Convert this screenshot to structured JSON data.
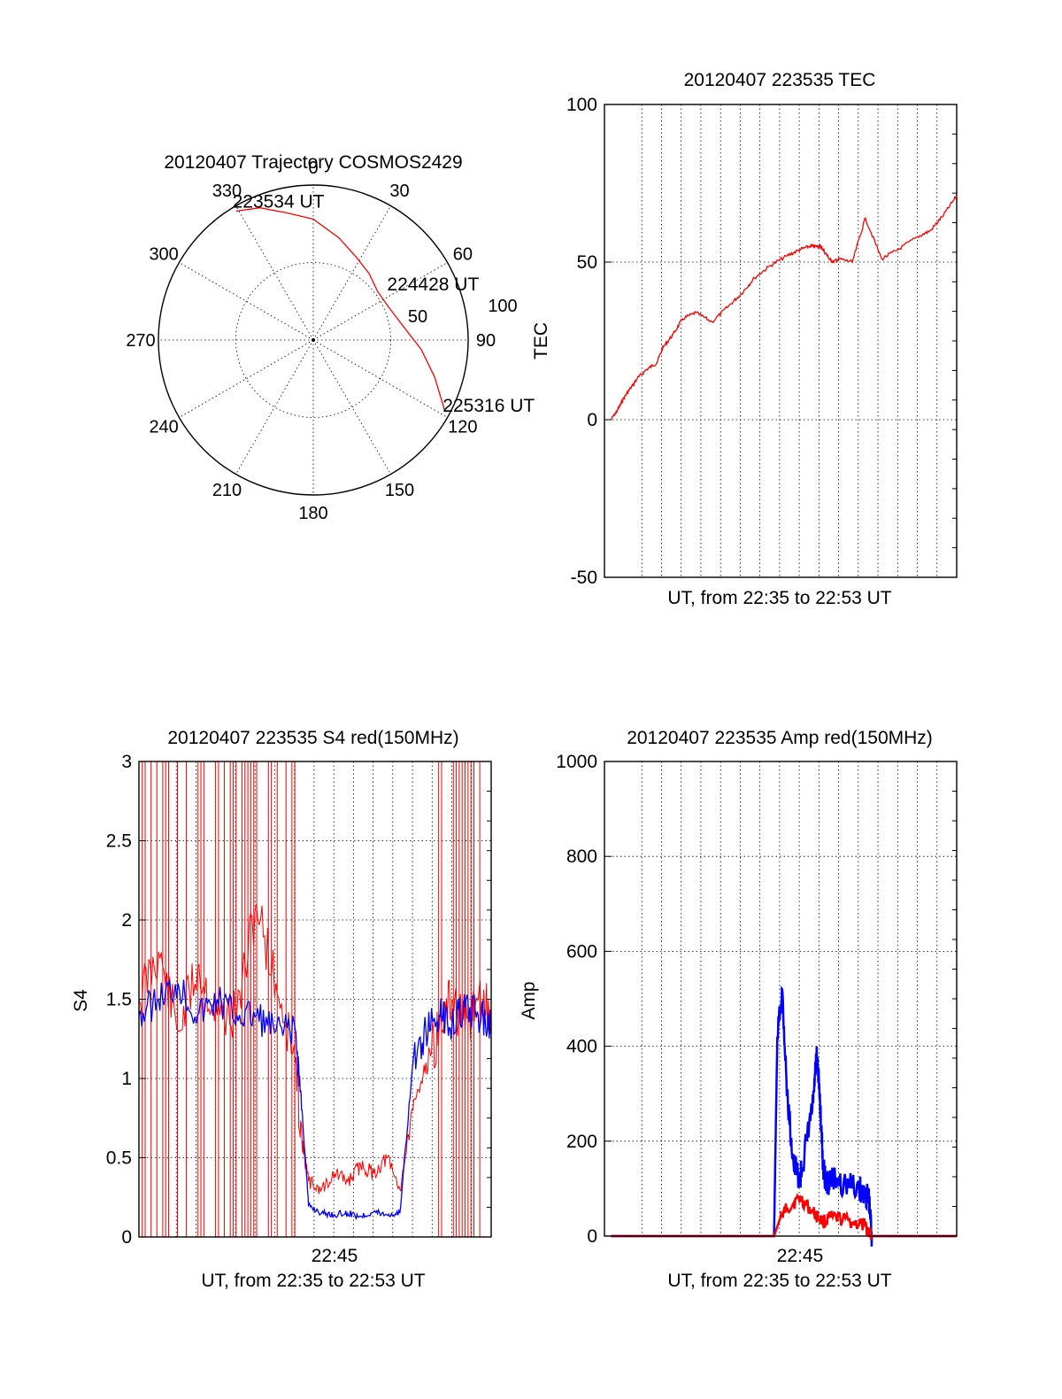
{
  "colors": {
    "red": "#ff0000",
    "blue": "#0000ff",
    "axis": "#000000",
    "background": "#ffffff"
  },
  "chart_data": [
    {
      "type": "scatter",
      "subtype": "polar",
      "title": "20120407 Trajectory COSMOS2429",
      "angle_labels": [
        "0",
        "30",
        "60",
        "90",
        "120",
        "150",
        "180",
        "210",
        "240",
        "270",
        "300",
        "330"
      ],
      "angle_direction": "clockwise from top",
      "radial_labels": [
        "50",
        "100"
      ],
      "rlim": [
        0,
        100
      ],
      "grid": true,
      "series": [
        {
          "color": "#ff0000",
          "points": [
            {
              "az": 329,
              "r": 97
            },
            {
              "az": 338,
              "r": 92
            },
            {
              "az": 348,
              "r": 84
            },
            {
              "az": 0,
              "r": 78
            },
            {
              "az": 14,
              "r": 68
            },
            {
              "az": 28,
              "r": 60
            },
            {
              "az": 40,
              "r": 56
            },
            {
              "az": 53,
              "r": 52
            },
            {
              "az": 66,
              "r": 53
            },
            {
              "az": 80,
              "r": 58
            },
            {
              "az": 95,
              "r": 70
            },
            {
              "az": 107,
              "r": 82
            },
            {
              "az": 118,
              "r": 96
            }
          ]
        }
      ],
      "annotations": [
        {
          "text": "223534 UT",
          "az": 329,
          "r": 97
        },
        {
          "text": "224428 UT",
          "az": 55,
          "r": 54
        },
        {
          "text": "225316 UT",
          "az": 118,
          "r": 96
        }
      ]
    },
    {
      "type": "line",
      "title": "20120407 223535 TEC",
      "xlabel": "UT, from 22:35 to 22:53 UT",
      "ylabel": "TEC",
      "xlim": [
        0,
        1080
      ],
      "ylim": [
        -50,
        100
      ],
      "yticks": [
        "-50",
        "0",
        "50",
        "100"
      ],
      "grid": true,
      "series": [
        {
          "color": "#ff0000",
          "x": [
            20,
            40,
            60,
            80,
            100,
            130,
            160,
            180,
            210,
            240,
            280,
            330,
            380,
            420,
            460,
            510,
            560,
            600,
            630,
            650,
            662,
            670,
            690,
            700,
            720,
            760,
            800,
            850,
            900,
            960,
            1000,
            1040,
            1080
          ],
          "y": [
            0,
            3,
            7,
            10,
            13,
            16,
            18,
            23,
            27,
            32,
            34,
            31,
            36,
            40,
            45,
            49,
            52,
            54,
            55,
            55,
            55,
            54,
            51,
            50,
            51,
            50,
            64,
            51,
            54,
            58,
            60,
            65,
            71
          ]
        }
      ]
    },
    {
      "type": "line",
      "title": "20120407 223535 S4 red(150MHz)",
      "xlabel": "UT, from 22:35 to 22:53 UT",
      "ylabel": "S4",
      "xtick_labels": [
        "22:45"
      ],
      "xlim": [
        0,
        1080
      ],
      "ylim": [
        0,
        3
      ],
      "yticks": [
        "0",
        "0.5",
        "1",
        "1.5",
        "2",
        "2.5",
        "3"
      ],
      "grid": true,
      "series": [
        {
          "color": "#ff0000",
          "x": [
            0,
            60,
            120,
            180,
            240,
            300,
            360,
            420,
            480,
            500,
            520,
            560,
            600,
            640,
            680,
            720,
            760,
            800,
            840,
            880,
            920,
            960,
            1000,
            1040,
            1080
          ],
          "y": [
            1.5,
            1.8,
            1.3,
            1.7,
            1.4,
            1.4,
            2.1,
            1.6,
            1.1,
            0.6,
            0.35,
            0.3,
            0.4,
            0.35,
            0.45,
            0.4,
            0.5,
            0.3,
            0.8,
            1.1,
            1.3,
            1.5,
            1.3,
            1.5,
            1.4
          ]
        },
        {
          "color": "#0000ff",
          "x": [
            0,
            60,
            120,
            180,
            240,
            300,
            360,
            420,
            480,
            500,
            520,
            560,
            600,
            640,
            680,
            720,
            760,
            800,
            840,
            880,
            920,
            960,
            1000,
            1040,
            1080
          ],
          "y": [
            1.4,
            1.5,
            1.6,
            1.4,
            1.5,
            1.4,
            1.4,
            1.3,
            1.3,
            0.8,
            0.2,
            0.15,
            0.14,
            0.15,
            0.13,
            0.16,
            0.14,
            0.15,
            1.1,
            1.3,
            1.4,
            1.35,
            1.45,
            1.4,
            1.35
          ]
        }
      ]
    },
    {
      "type": "line",
      "title": "20120407 223535 Amp red(150MHz)",
      "xlabel": "UT, from 22:35 to 22:53 UT",
      "ylabel": "Amp",
      "xtick_labels": [
        "22:45"
      ],
      "xlim": [
        0,
        1080
      ],
      "ylim": [
        0,
        1000
      ],
      "yticks": [
        "0",
        "200",
        "400",
        "600",
        "800",
        "1000"
      ],
      "grid": true,
      "series": [
        {
          "color": "#0000ff",
          "x": [
            20,
            200,
            420,
            520,
            530,
            545,
            560,
            580,
            600,
            620,
            640,
            650,
            660,
            670,
            680,
            700,
            740,
            780,
            800,
            810,
            820,
            1080
          ],
          "y": [
            0,
            0,
            0,
            0,
            420,
            520,
            300,
            150,
            120,
            200,
            280,
            380,
            300,
            150,
            110,
            120,
            110,
            100,
            90,
            80,
            0,
            0
          ]
        },
        {
          "color": "#ff0000",
          "x": [
            20,
            420,
            520,
            540,
            560,
            600,
            640,
            670,
            700,
            760,
            800,
            820,
            1080
          ],
          "y": [
            0,
            0,
            0,
            40,
            60,
            80,
            50,
            30,
            40,
            30,
            20,
            0,
            0
          ]
        }
      ]
    }
  ]
}
